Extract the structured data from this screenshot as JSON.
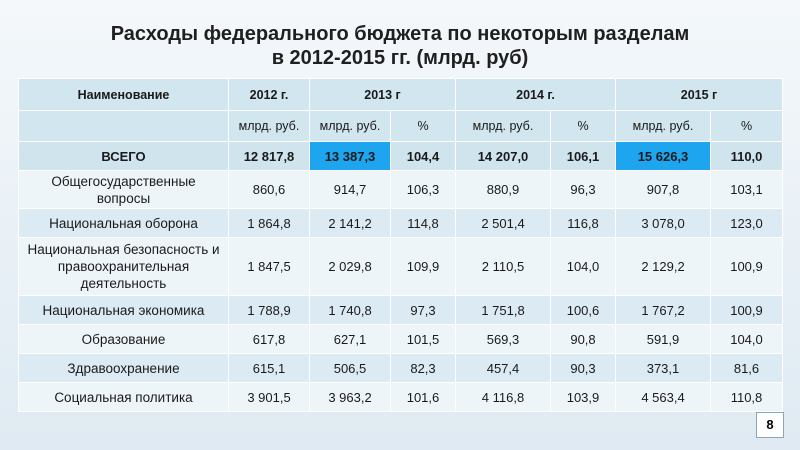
{
  "title_line1": "Расходы федерального бюджета по некоторым разделам",
  "title_line2": "в 2012-2015 гг. (млрд. руб)",
  "header": {
    "name": "Наименование",
    "y2012": "2012 г.",
    "y2013": "2013 г",
    "y2014": "2014 г.",
    "y2015": "2015 г",
    "unit": "млрд. руб.",
    "pct": "%"
  },
  "total": {
    "label": "ВСЕГО",
    "values": [
      "12 817,8",
      "13 387,3",
      "104,4",
      "14 207,0",
      "106,1",
      "15 626,3",
      "110,0"
    ]
  },
  "rows": [
    {
      "name": "Общегосударственные вопросы",
      "values": [
        "860,6",
        "914,7",
        "106,3",
        "880,9",
        "96,3",
        "907,8",
        "103,1"
      ]
    },
    {
      "name": "Национальная оборона",
      "values": [
        "1 864,8",
        "2 141,2",
        "114,8",
        "2 501,4",
        "116,8",
        "3 078,0",
        "123,0"
      ]
    },
    {
      "name": "Национальная безопасность и правоохранительная деятельность",
      "values": [
        "1 847,5",
        "2 029,8",
        "109,9",
        "2 110,5",
        "104,0",
        "2 129,2",
        "100,9"
      ]
    },
    {
      "name": "Национальная экономика",
      "values": [
        "1 788,9",
        "1 740,8",
        "97,3",
        "1 751,8",
        "100,6",
        "1 767,2",
        "100,9"
      ]
    },
    {
      "name": "Образование",
      "values": [
        "617,8",
        "627,1",
        "101,5",
        "569,3",
        "90,8",
        "591,9",
        "104,0"
      ]
    },
    {
      "name": "Здравоохранение",
      "values": [
        "615,1",
        "506,5",
        "82,3",
        "457,4",
        "90,3",
        "373,1",
        "81,6"
      ]
    },
    {
      "name": "Социальная политика",
      "values": [
        "3 901,5",
        "3 963,2",
        "101,6",
        "4 116,8",
        "103,9",
        "4 563,4",
        "110,8"
      ]
    }
  ],
  "highlight_color": "#1ea5f0",
  "page_number": "8"
}
